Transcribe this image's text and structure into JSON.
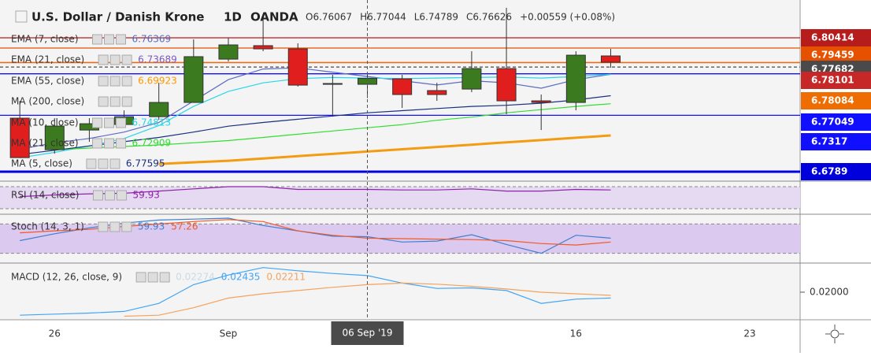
{
  "chart_data": {
    "type": "candlestick",
    "symbol": "U.S. Dollar / Danish Krone",
    "interval": "1D",
    "source": "OANDA",
    "ohlc": [
      "O6.76067",
      "H6.77044",
      "L6.74789",
      "C6.76626",
      "+0.00559 (+0.08%)"
    ],
    "open": [
      6.729,
      6.6995,
      6.7179,
      6.7231,
      6.7304,
      6.7437,
      6.7842,
      6.7968,
      6.7938,
      6.7607,
      6.76067,
      6.7658,
      6.7548,
      6.7562,
      6.7754,
      6.7452,
      6.7437,
      6.7872
    ],
    "high": [
      6.7452,
      6.729,
      6.729,
      6.7363,
      6.7621,
      6.8027,
      6.8041,
      6.8248,
      6.799,
      6.7695,
      6.77044,
      6.7695,
      6.7621,
      6.7916,
      6.8322,
      6.7511,
      6.7916,
      6.7938
    ],
    "low": [
      6.6921,
      6.6958,
      6.7069,
      6.7201,
      6.7275,
      6.7437,
      6.782,
      6.7916,
      6.7585,
      6.7304,
      6.74789,
      6.7386,
      6.7452,
      6.7533,
      6.7327,
      6.7179,
      6.7363,
      6.7761
    ],
    "close": [
      6.6921,
      6.7216,
      6.7238,
      6.7304,
      6.7437,
      6.7865,
      6.7975,
      6.7938,
      6.7599,
      6.7614,
      6.76626,
      6.7511,
      6.7511,
      6.7754,
      6.7452,
      6.7437,
      6.7879,
      6.7813
    ],
    "up_color": "#3b7a1f",
    "down_color": "#e01e1e",
    "xlim": [
      -0.57,
      22.45
    ],
    "xticks": [
      {
        "value": 1,
        "label": "26"
      },
      {
        "value": 6,
        "label": "Sep"
      },
      {
        "value": 16,
        "label": "16"
      },
      {
        "value": 21,
        "label": "23"
      }
    ],
    "crosshair": {
      "value": 10,
      "label": "06 Sep '19"
    },
    "ylim": [
      6.6701,
      6.8336
    ],
    "series": [
      {
        "name": "EMA (7, close)",
        "value_label": "6.76369",
        "color": "#5c6bc0",
        "values": [
          6.7,
          6.706,
          6.71,
          6.716,
          6.725,
          6.745,
          6.765,
          6.775,
          6.776,
          6.772,
          6.768,
          6.764,
          6.76,
          6.764,
          6.762,
          6.757,
          6.765,
          6.77
        ]
      },
      {
        "name": "EMA (21, close)",
        "value_label": "6.73689",
        "color": "#7e57c2",
        "values": [
          null,
          null,
          null,
          null,
          null,
          null,
          null,
          null,
          null,
          null,
          null,
          null,
          null,
          null,
          null,
          null,
          null,
          null
        ]
      },
      {
        "name": "EMA (55, close)",
        "value_label": "6.69923",
        "color": "#ff9800",
        "values": [
          null,
          null,
          null,
          null,
          null,
          null,
          null,
          null,
          null,
          null,
          null,
          null,
          null,
          null,
          null,
          null,
          null,
          null
        ]
      },
      {
        "name": "MA (200, close)",
        "color": "#f39c12",
        "values": [
          null,
          null,
          null,
          null,
          6.6862,
          6.6877,
          6.6892,
          6.6913,
          6.6935,
          6.6956,
          6.6978,
          6.6999,
          6.7021,
          6.7042,
          6.7064,
          6.7085,
          6.7107,
          6.7128
        ]
      },
      {
        "name": "MA (10, close)",
        "value_label": "6.74813",
        "color": "#26d7e6",
        "values": [
          6.692,
          6.697,
          6.703,
          6.71,
          6.722,
          6.74,
          6.754,
          6.762,
          6.766,
          6.767,
          6.7665,
          6.766,
          6.7665,
          6.767,
          6.7675,
          6.7665,
          6.768,
          6.77
        ]
      },
      {
        "name": "MA (21, close)",
        "value_label": "6.72909",
        "color": "#33dd33",
        "values": [
          null,
          6.6995,
          6.701,
          6.7025,
          6.704,
          6.706,
          6.708,
          6.711,
          6.714,
          6.717,
          6.72,
          6.723,
          6.727,
          6.73,
          6.734,
          6.737,
          6.74,
          6.7425
        ]
      },
      {
        "name": "MA (5, close)",
        "value_label": "6.77595",
        "color": "#1a2f80",
        "values": [
          6.695,
          6.699,
          6.703,
          6.707,
          6.711,
          6.716,
          6.7215,
          6.725,
          6.728,
          6.731,
          6.734,
          6.736,
          6.738,
          6.74,
          6.741,
          6.743,
          6.746,
          6.75
        ]
      }
    ],
    "levels": [
      {
        "value": 6.80414,
        "color": "#b71c1c"
      },
      {
        "value": 6.79459,
        "color": "#e65100"
      },
      {
        "value": 6.77682,
        "color": "#4a4a4a",
        "dashed": true
      },
      {
        "value": 6.78101,
        "color": "#c62828"
      },
      {
        "value": 6.78084,
        "color": "#ef6c00"
      },
      {
        "value": 6.77049,
        "color": "#1010ff"
      },
      {
        "value": 6.7317,
        "color": "#1010ff"
      },
      {
        "value": 6.6789,
        "color": "#0000dd"
      }
    ],
    "panes": [
      {
        "name": "RSI (14, close)",
        "ylim": [
          20,
          80
        ],
        "band": [
          30,
          70
        ],
        "band_color": "#e6d9f2",
        "series": [
          {
            "value_label": "59.93",
            "color": "#8e24aa",
            "values": [
              52,
              55,
              57,
              58,
              62,
              66,
              70,
              70,
              65,
              65,
              65,
              64,
              64,
              66,
              62,
              62,
              65,
              64
            ]
          }
        ]
      },
      {
        "name": "Stoch (14, 3, 1)",
        "ylim": [
          0,
          100
        ],
        "band": [
          20,
          80
        ],
        "band_color": "#dcc9f0",
        "series": [
          {
            "value_label": "59.93",
            "color": "#3f7fd0",
            "values": [
              46,
              60,
              72,
              82,
              88,
              90,
              92,
              77,
              66,
              55,
              54,
              43,
              45,
              58,
              38,
              20,
              57,
              51
            ]
          },
          {
            "value_label": "57.26",
            "color": "#ef5a28",
            "values": [
              62,
              66,
              69,
              75,
              80,
              85,
              89,
              85,
              66,
              57,
              51,
              50,
              49,
              48,
              46,
              40,
              37,
              43
            ]
          }
        ]
      },
      {
        "name": "MACD (12, 26, close, 9)",
        "ylim": [
          0.01499,
          0.02544
        ],
        "yticks": [
          {
            "value": 0.02,
            "label": "0.02000"
          }
        ],
        "series": [
          {
            "value_label": "0.02274",
            "color": "#c8dbe8",
            "values": []
          },
          {
            "value_label": "0.02435",
            "color": "#42a5f5",
            "values": [
              0.0157,
              0.0159,
              0.0161,
              0.0164,
              0.0179,
              0.0214,
              0.0232,
              0.0246,
              0.024,
              0.0235,
              0.0231,
              0.0217,
              0.0207,
              0.0208,
              0.0203,
              0.0179,
              0.0187,
              0.0189
            ]
          },
          {
            "value_label": "0.02211",
            "color": "#f5a25d",
            "values": [
              null,
              null,
              null,
              0.0155,
              0.0157,
              0.0171,
              0.0189,
              0.0197,
              0.0203,
              0.0209,
              0.0214,
              0.0217,
              0.0215,
              0.0211,
              0.0206,
              0.02,
              0.0197,
              0.0194
            ]
          }
        ]
      }
    ]
  }
}
